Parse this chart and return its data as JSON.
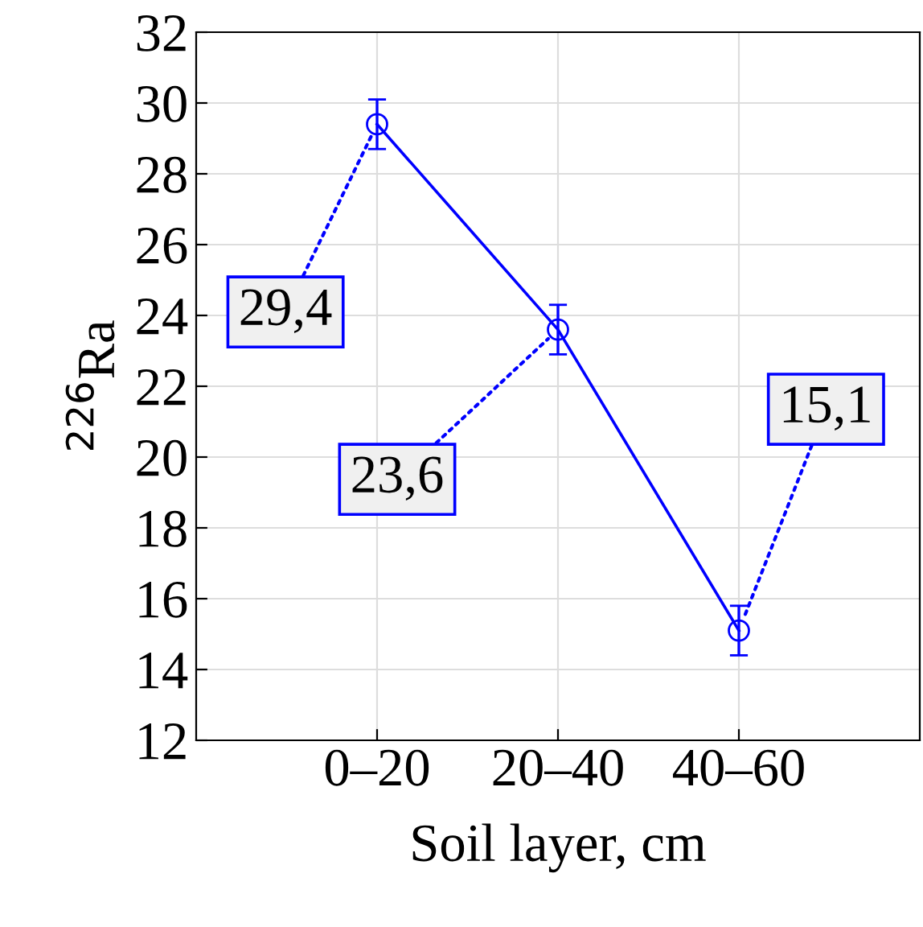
{
  "chart_data": {
    "type": "line",
    "xlabel": "Soil layer, cm",
    "ylabel": "$^{226}$Ra",
    "categories": [
      "0–20",
      "20–40",
      "40–60"
    ],
    "values": [
      29.4,
      23.6,
      15.1
    ],
    "errors": [
      0.7,
      0.7,
      0.7
    ],
    "color": "#0000ff",
    "marker": "circle",
    "line_style": "solid",
    "grid": true,
    "ylim": [
      12,
      32
    ],
    "yticks": [
      12,
      14,
      16,
      18,
      20,
      22,
      24,
      26,
      28,
      30,
      32
    ],
    "annotations": [
      {
        "text": "29,4",
        "x": "0–20",
        "y": 29.4
      },
      {
        "text": "23,6",
        "x": "20–40",
        "y": 23.6
      },
      {
        "text": "15,1",
        "x": "40–60",
        "y": 15.1
      }
    ]
  }
}
